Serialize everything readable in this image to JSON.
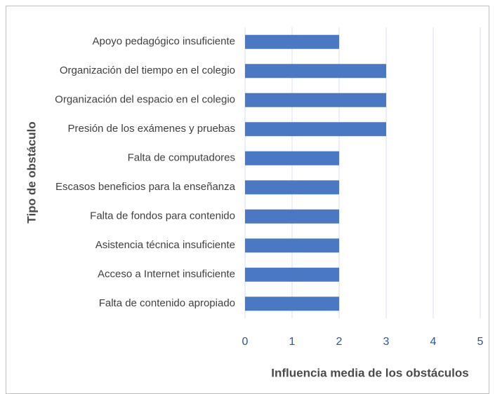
{
  "chart_data": {
    "type": "barh",
    "xlabel": "Influencia media de los obstáculos",
    "ylabel": "Tipo de obstáculo",
    "categories": [
      "Apoyo pedagógico insuficiente",
      "Organización del tiempo en el colegio",
      "Organización del espacio en el colegio",
      "Presión de los exámenes y pruebas",
      "Falta de computadores",
      "Escasos beneficios para la enseñanza",
      "Falta de fondos para contenido",
      "Asistencia técnica insuficiente",
      "Acceso a Internet insuficiente",
      "Falta de contenido apropiado"
    ],
    "values": [
      2,
      3,
      3,
      3,
      2,
      2,
      2,
      2,
      2,
      2
    ],
    "color": "#4a78c2",
    "xlim": [
      0,
      5
    ],
    "xticks": [
      0,
      1,
      2,
      3,
      4,
      5
    ],
    "grid": true
  }
}
